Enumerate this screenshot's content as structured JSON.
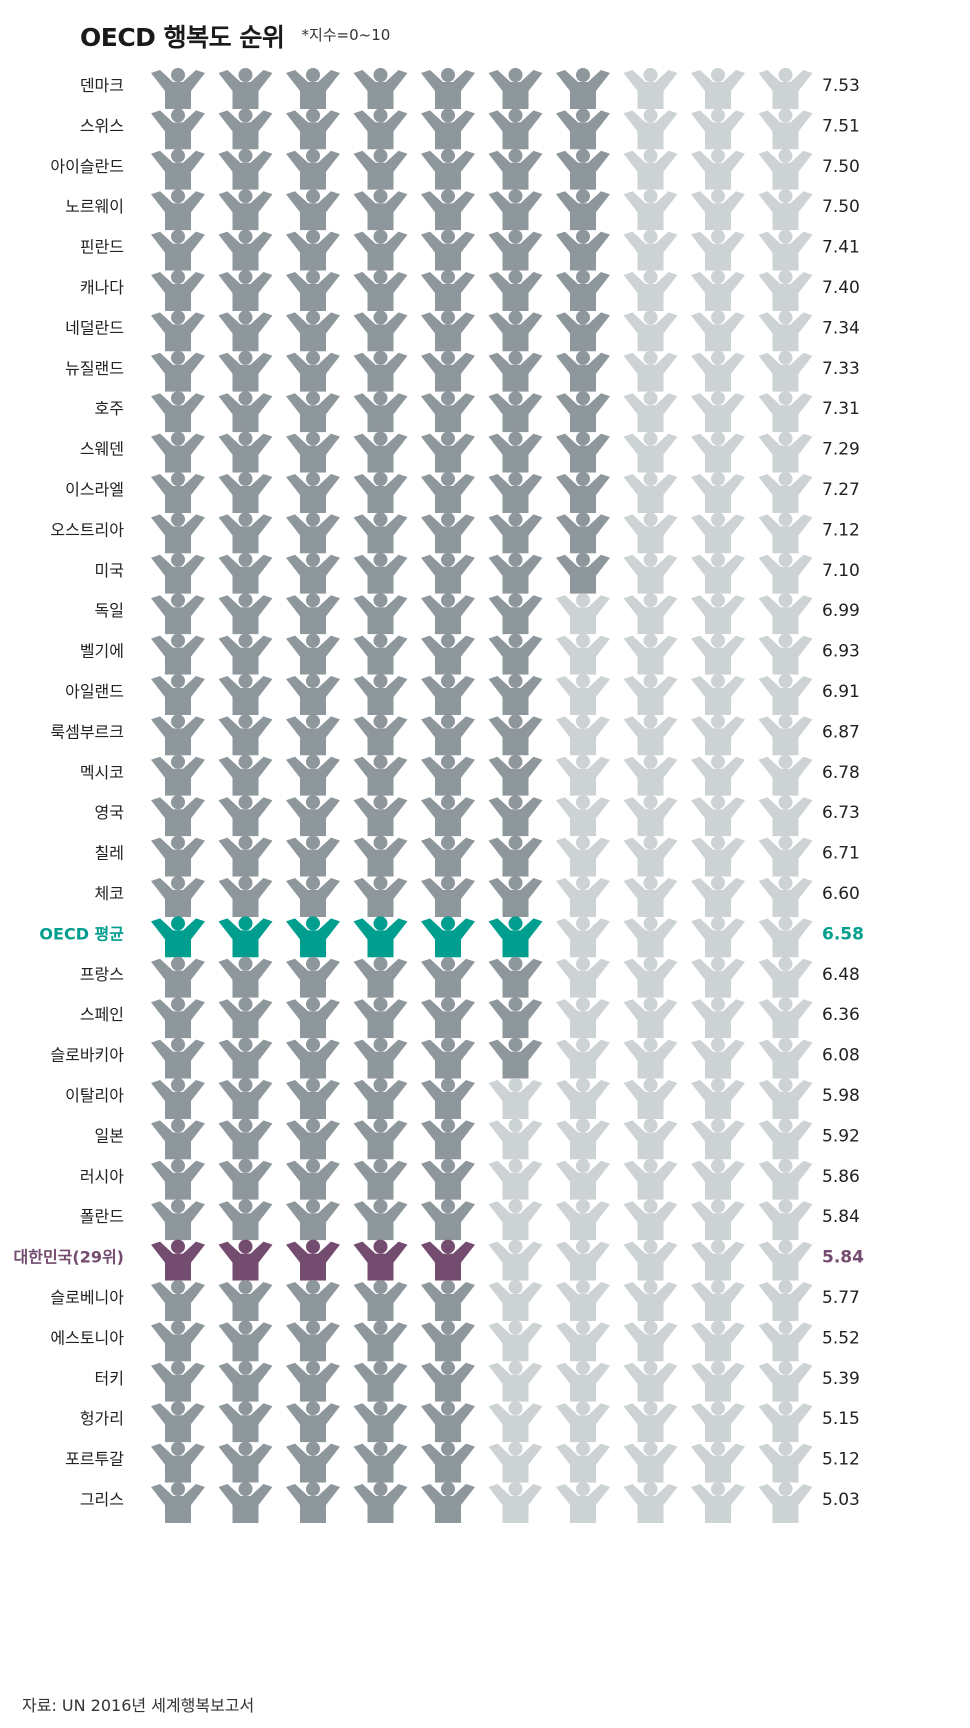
{
  "chart_data": {
    "type": "pictograph",
    "title": "OECD 행복도 순위",
    "note": "*지수=0~10",
    "source": "자료: UN 2016년 세계행복보고서",
    "max_value": 10,
    "colors": {
      "filled": "#8e979c",
      "empty": "#cdd2d4",
      "oecd_average": "#009e8e",
      "korea": "#744c6f",
      "text": "#222222"
    },
    "rows": [
      {
        "label": "덴마크",
        "value": 7.53
      },
      {
        "label": "스위스",
        "value": 7.51
      },
      {
        "label": "아이슬란드",
        "value": 7.5
      },
      {
        "label": "노르웨이",
        "value": 7.5
      },
      {
        "label": "핀란드",
        "value": 7.41
      },
      {
        "label": "캐나다",
        "value": 7.4
      },
      {
        "label": "네덜란드",
        "value": 7.34
      },
      {
        "label": "뉴질랜드",
        "value": 7.33
      },
      {
        "label": "호주",
        "value": 7.31
      },
      {
        "label": "스웨덴",
        "value": 7.29
      },
      {
        "label": "이스라엘",
        "value": 7.27
      },
      {
        "label": "오스트리아",
        "value": 7.12
      },
      {
        "label": "미국",
        "value": 7.1
      },
      {
        "label": "독일",
        "value": 6.99
      },
      {
        "label": "벨기에",
        "value": 6.93
      },
      {
        "label": "아일랜드",
        "value": 6.91
      },
      {
        "label": "룩셈부르크",
        "value": 6.87
      },
      {
        "label": "멕시코",
        "value": 6.78
      },
      {
        "label": "영국",
        "value": 6.73
      },
      {
        "label": "칠레",
        "value": 6.71
      },
      {
        "label": "체코",
        "value": 6.6
      },
      {
        "label": "OECD 평균",
        "value": 6.58,
        "highlight": "oecd_average"
      },
      {
        "label": "프랑스",
        "value": 6.48
      },
      {
        "label": "스페인",
        "value": 6.36
      },
      {
        "label": "슬로바키아",
        "value": 6.08
      },
      {
        "label": "이탈리아",
        "value": 5.98
      },
      {
        "label": "일본",
        "value": 5.92
      },
      {
        "label": "러시아",
        "value": 5.86
      },
      {
        "label": "폴란드",
        "value": 5.84
      },
      {
        "label": "대한민국(29위)",
        "value": 5.84,
        "highlight": "korea"
      },
      {
        "label": "슬로베니아",
        "value": 5.77
      },
      {
        "label": "에스토니아",
        "value": 5.52
      },
      {
        "label": "터키",
        "value": 5.39
      },
      {
        "label": "헝가리",
        "value": 5.15
      },
      {
        "label": "포르투갈",
        "value": 5.12
      },
      {
        "label": "그리스",
        "value": 5.03
      }
    ]
  }
}
